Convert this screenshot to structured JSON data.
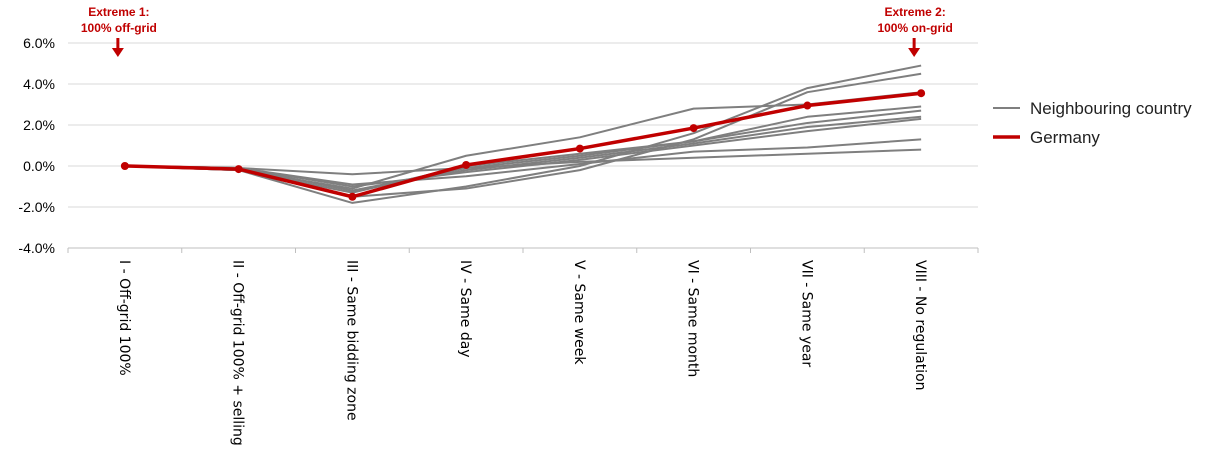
{
  "chart_data": {
    "type": "line",
    "categories": [
      "I - Off-grid 100%",
      "II - Off-grid 100% + selling",
      "III - Same bidding zone",
      "IV - Same day",
      "V - Same week",
      "VI - Same month",
      "VII - Same year",
      "VIII - No regulation"
    ],
    "y_ticks": [
      "6.0%",
      "4.0%",
      "2.0%",
      "0.0%",
      "-2.0%",
      "-4.0%"
    ],
    "ylim": [
      -4.0,
      6.0
    ],
    "grid": true,
    "legend_position": "right",
    "legend": [
      {
        "label": "Neighbouring country",
        "color": "#7f7f7f"
      },
      {
        "label": "Germany",
        "color": "#c00000"
      }
    ],
    "annotations": [
      {
        "line1": "Extreme 1:",
        "line2": "100% off-grid",
        "category_index": 0
      },
      {
        "line1": "Extreme 2:",
        "line2": "100% on-grid",
        "category_index": 7
      }
    ],
    "neighbour_series": [
      {
        "values": [
          0,
          -0.1,
          -0.4,
          -0.1,
          0.2,
          0.4,
          0.6,
          0.8
        ]
      },
      {
        "values": [
          0,
          -0.1,
          -0.9,
          -0.5,
          0.1,
          0.7,
          0.9,
          1.3
        ]
      },
      {
        "values": [
          0,
          -0.1,
          -1.0,
          -0.3,
          0.3,
          1.0,
          1.7,
          2.3
        ]
      },
      {
        "values": [
          0,
          -0.1,
          -1.2,
          -0.2,
          0.4,
          1.1,
          1.9,
          2.4
        ]
      },
      {
        "values": [
          0,
          -0.2,
          -1.3,
          0.0,
          0.6,
          1.2,
          2.1,
          2.7
        ]
      },
      {
        "values": [
          0,
          -0.2,
          -1.1,
          0.5,
          1.4,
          2.8,
          3.0,
          3.6
        ]
      },
      {
        "values": [
          0,
          -0.2,
          -1.5,
          -1.1,
          -0.2,
          1.3,
          3.6,
          4.5
        ]
      },
      {
        "values": [
          0,
          -0.2,
          -1.8,
          -1.0,
          0.0,
          1.6,
          3.8,
          4.9
        ]
      },
      {
        "values": [
          0,
          -0.1,
          -1.2,
          -0.1,
          0.5,
          1.2,
          2.4,
          2.9
        ]
      }
    ],
    "germany": {
      "values": [
        0,
        -0.15,
        -1.5,
        0.05,
        0.85,
        1.85,
        2.95,
        3.55
      ]
    }
  }
}
